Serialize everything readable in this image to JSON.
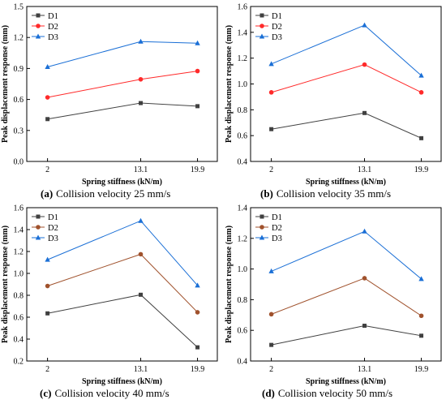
{
  "chart_data": [
    {
      "type": "line",
      "panel": "a",
      "caption_label": "(a)",
      "caption_text": "Collision velocity 25 mm/s",
      "xlabel": "Spring stiffness (kN/m)",
      "ylabel": "Peak displacement response (mm)",
      "categories": [
        "2",
        "13.1",
        "19.9"
      ],
      "ylim": [
        0.0,
        1.5
      ],
      "yticks": [
        "0.0",
        "0.3",
        "0.6",
        "0.9",
        "1.2",
        "1.5"
      ],
      "legend_position": "top-left",
      "series": [
        {
          "name": "D1",
          "color": "#404040",
          "marker": "square",
          "values": [
            0.41,
            0.565,
            0.535
          ]
        },
        {
          "name": "D2",
          "color": "#ff2a2a",
          "marker": "circle",
          "values": [
            0.62,
            0.795,
            0.875
          ]
        },
        {
          "name": "D3",
          "color": "#1a6fd6",
          "marker": "triangle",
          "values": [
            0.915,
            1.16,
            1.145
          ]
        }
      ]
    },
    {
      "type": "line",
      "panel": "b",
      "caption_label": "(b)",
      "caption_text": "Collision velocity 35 mm/s",
      "xlabel": "Spring stiffness (kN/m)",
      "ylabel": "Peak displacement response (mm)",
      "categories": [
        "2",
        "13.1",
        "19.9"
      ],
      "ylim": [
        0.4,
        1.6
      ],
      "yticks": [
        "0.4",
        "0.6",
        "0.8",
        "1.0",
        "1.2",
        "1.4",
        "1.6"
      ],
      "legend_position": "top-left",
      "series": [
        {
          "name": "D1",
          "color": "#404040",
          "marker": "square",
          "values": [
            0.65,
            0.775,
            0.58
          ]
        },
        {
          "name": "D2",
          "color": "#ff2a2a",
          "marker": "circle",
          "values": [
            0.935,
            1.15,
            0.935
          ]
        },
        {
          "name": "D3",
          "color": "#1a6fd6",
          "marker": "triangle",
          "values": [
            1.155,
            1.455,
            1.065
          ]
        }
      ]
    },
    {
      "type": "line",
      "panel": "c",
      "caption_label": "(c)",
      "caption_text": "Collision velocity 40 mm/s",
      "xlabel": "Spring stiffness (kN/m)",
      "ylabel": "Peak displacement response (mm)",
      "categories": [
        "2",
        "13.1",
        "19.9"
      ],
      "ylim": [
        0.2,
        1.6
      ],
      "yticks": [
        "0.2",
        "0.4",
        "0.6",
        "0.8",
        "1.0",
        "1.2",
        "1.4",
        "1.6"
      ],
      "legend_position": "top-left",
      "series": [
        {
          "name": "D1",
          "color": "#404040",
          "marker": "square",
          "values": [
            0.635,
            0.805,
            0.325
          ]
        },
        {
          "name": "D2",
          "color": "#a0522d",
          "marker": "circle",
          "values": [
            0.885,
            1.175,
            0.645
          ]
        },
        {
          "name": "D3",
          "color": "#1a6fd6",
          "marker": "triangle",
          "values": [
            1.125,
            1.48,
            0.89
          ]
        }
      ]
    },
    {
      "type": "line",
      "panel": "d",
      "caption_label": "(d)",
      "caption_text": "Collision velocity 50 mm/s",
      "xlabel": "Spring stiffness (kN/m)",
      "ylabel": "Peak displacement response (mm)",
      "categories": [
        "2",
        "13.1",
        "19.9"
      ],
      "ylim": [
        0.4,
        1.4
      ],
      "yticks": [
        "0.4",
        "0.6",
        "0.8",
        "1.0",
        "1.2",
        "1.4"
      ],
      "legend_position": "top-left",
      "series": [
        {
          "name": "D1",
          "color": "#404040",
          "marker": "square",
          "values": [
            0.505,
            0.63,
            0.565
          ]
        },
        {
          "name": "D2",
          "color": "#a0522d",
          "marker": "circle",
          "values": [
            0.705,
            0.94,
            0.695
          ]
        },
        {
          "name": "D3",
          "color": "#1a6fd6",
          "marker": "triangle",
          "values": [
            0.985,
            1.245,
            0.935
          ]
        }
      ]
    }
  ]
}
